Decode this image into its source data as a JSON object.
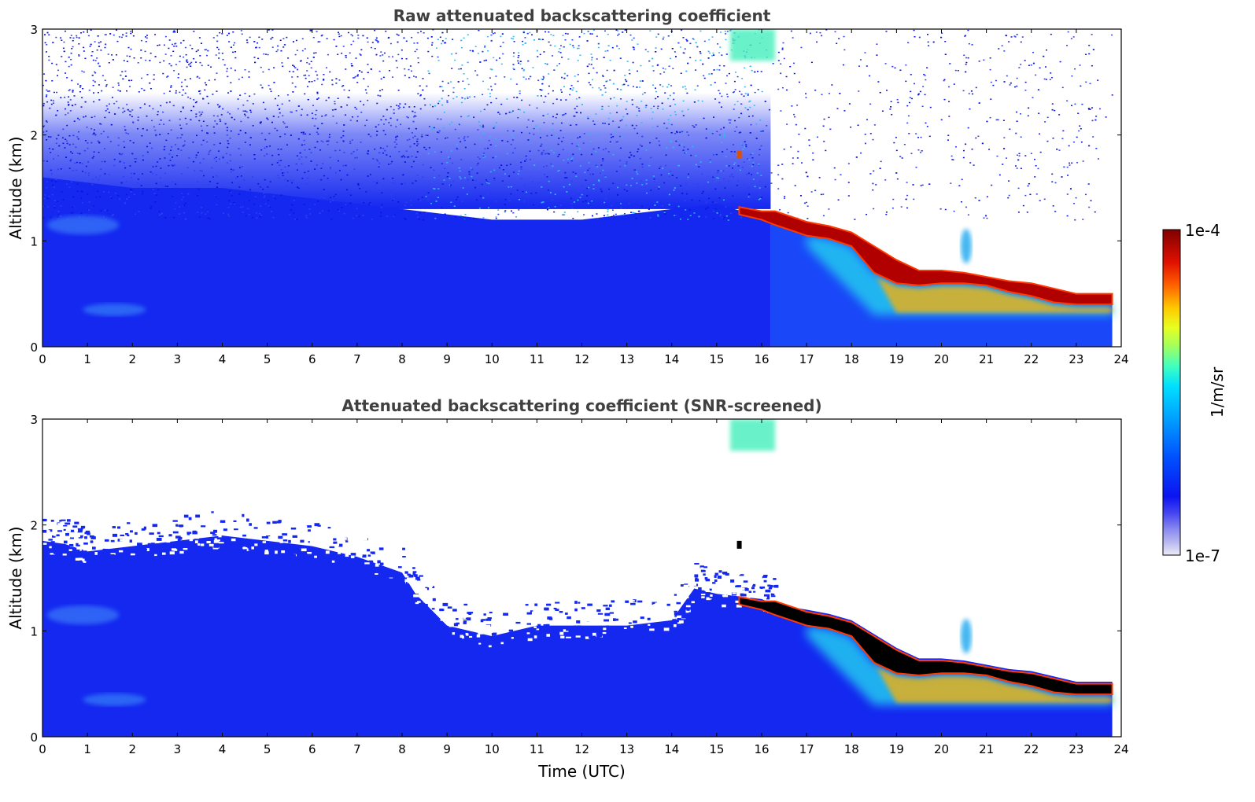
{
  "chart_data": [
    {
      "type": "heatmap",
      "title": "Raw attenuated backscattering coefficient",
      "xlabel": "",
      "ylabel": "Altitude (km)",
      "xlim": [
        0,
        24
      ],
      "ylim": [
        0,
        3
      ],
      "xticks": [
        0,
        1,
        2,
        3,
        4,
        5,
        6,
        7,
        8,
        9,
        10,
        11,
        12,
        13,
        14,
        15,
        16,
        17,
        18,
        19,
        20,
        21,
        22,
        23,
        24
      ],
      "yticks": [
        0,
        1,
        2,
        3
      ],
      "data_end_time": 23.8,
      "screened": false,
      "cloud_layer": {
        "time": [
          15.5,
          16.0,
          16.3,
          17.0,
          17.5,
          18.0,
          18.5,
          19.0,
          19.5,
          20.0,
          20.5,
          21.0,
          21.5,
          22.0,
          22.5,
          23.0,
          23.8
        ],
        "base_altitude": [
          1.25,
          1.2,
          1.15,
          1.05,
          1.02,
          0.95,
          0.7,
          0.6,
          0.58,
          0.6,
          0.6,
          0.58,
          0.52,
          0.48,
          0.42,
          0.4,
          0.4
        ],
        "top_altitude": [
          1.32,
          1.28,
          1.28,
          1.18,
          1.14,
          1.08,
          0.95,
          0.82,
          0.72,
          0.72,
          0.7,
          0.66,
          0.62,
          0.6,
          0.55,
          0.5,
          0.5
        ]
      },
      "boundary_layer_top": {
        "time": [
          0,
          2,
          4,
          6,
          8,
          10,
          12,
          14,
          15
        ],
        "altitude": [
          1.6,
          1.5,
          1.5,
          1.4,
          1.3,
          1.2,
          1.2,
          1.3,
          1.35
        ]
      }
    },
    {
      "type": "heatmap",
      "title": "Attenuated backscattering coefficient (SNR-screened)",
      "xlabel": "Time (UTC)",
      "ylabel": "Altitude (km)",
      "xlim": [
        0,
        24
      ],
      "ylim": [
        0,
        3
      ],
      "xticks": [
        0,
        1,
        2,
        3,
        4,
        5,
        6,
        7,
        8,
        9,
        10,
        11,
        12,
        13,
        14,
        15,
        16,
        17,
        18,
        19,
        20,
        21,
        22,
        23,
        24
      ],
      "yticks": [
        0,
        1,
        2,
        3
      ],
      "data_end_time": 23.8,
      "screened": true,
      "screen_top": {
        "time": [
          0,
          0.5,
          1,
          2,
          3,
          4,
          5,
          6,
          7,
          8,
          8.3,
          9,
          10,
          11,
          12,
          13,
          14,
          14.5,
          15,
          16,
          16.3
        ],
        "altitude": [
          1.85,
          1.82,
          1.75,
          1.8,
          1.85,
          1.9,
          1.85,
          1.8,
          1.7,
          1.55,
          1.35,
          1.05,
          0.95,
          1.05,
          1.05,
          1.05,
          1.1,
          1.4,
          1.35,
          1.3,
          1.25
        ]
      }
    }
  ],
  "colorbar": {
    "label": "1/m/sr",
    "max_label": "1e-4",
    "min_label": "1e-7",
    "colors": [
      "#e8e8f8",
      "#b8b8f0",
      "#8888f0",
      "#5050f0",
      "#1414f0",
      "#0028ff",
      "#0064ff",
      "#00a0ff",
      "#00d8ff",
      "#30ffd0",
      "#80ff80",
      "#d0ff30",
      "#ffd800",
      "#ff8c00",
      "#ff3000",
      "#d00000",
      "#800000"
    ]
  }
}
